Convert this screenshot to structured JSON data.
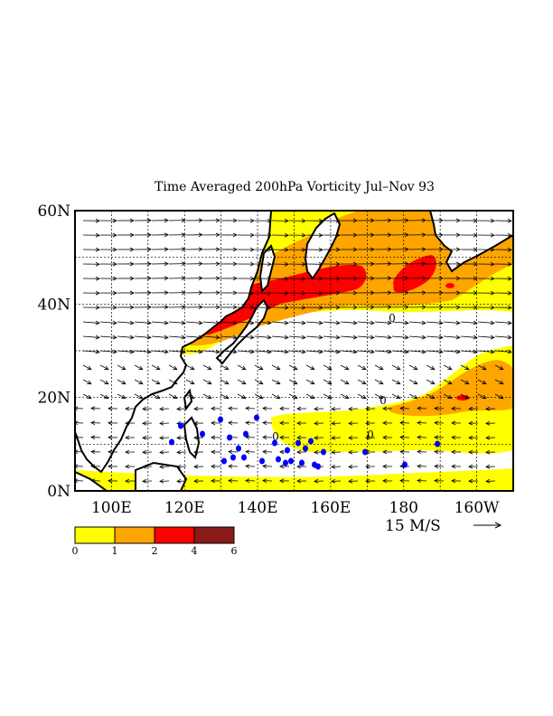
{
  "title": "Time Averaged 200hPa Vorticity Jul–Nov 93",
  "map": {
    "lon_range": [
      90,
      210
    ],
    "lat_range": [
      0,
      60
    ],
    "lat_ticks": [
      {
        "lat": 60,
        "label": "60N"
      },
      {
        "lat": 40,
        "label": "40N"
      },
      {
        "lat": 20,
        "label": "20N"
      },
      {
        "lat": 0,
        "label": "0N"
      }
    ],
    "lon_ticks": [
      {
        "lon": 100,
        "label": "100E"
      },
      {
        "lon": 120,
        "label": "120E"
      },
      {
        "lon": 140,
        "label": "140E"
      },
      {
        "lon": 160,
        "label": "160E"
      },
      {
        "lon": 180,
        "label": "180"
      },
      {
        "lon": 200,
        "label": "160W"
      }
    ],
    "contour_labels": [
      "0",
      "0",
      "0",
      "0"
    ]
  },
  "vector_key": {
    "label": "15 M/S"
  },
  "colorbar": {
    "levels": [
      "0",
      "1",
      "2",
      "4",
      "6"
    ],
    "colors": [
      "#ffff00",
      "#ffa500",
      "#ff0000",
      "#8b1a1a"
    ]
  },
  "colors": {
    "land": "#ffffff",
    "coast": "#000000",
    "tc": "#0000ff"
  }
}
